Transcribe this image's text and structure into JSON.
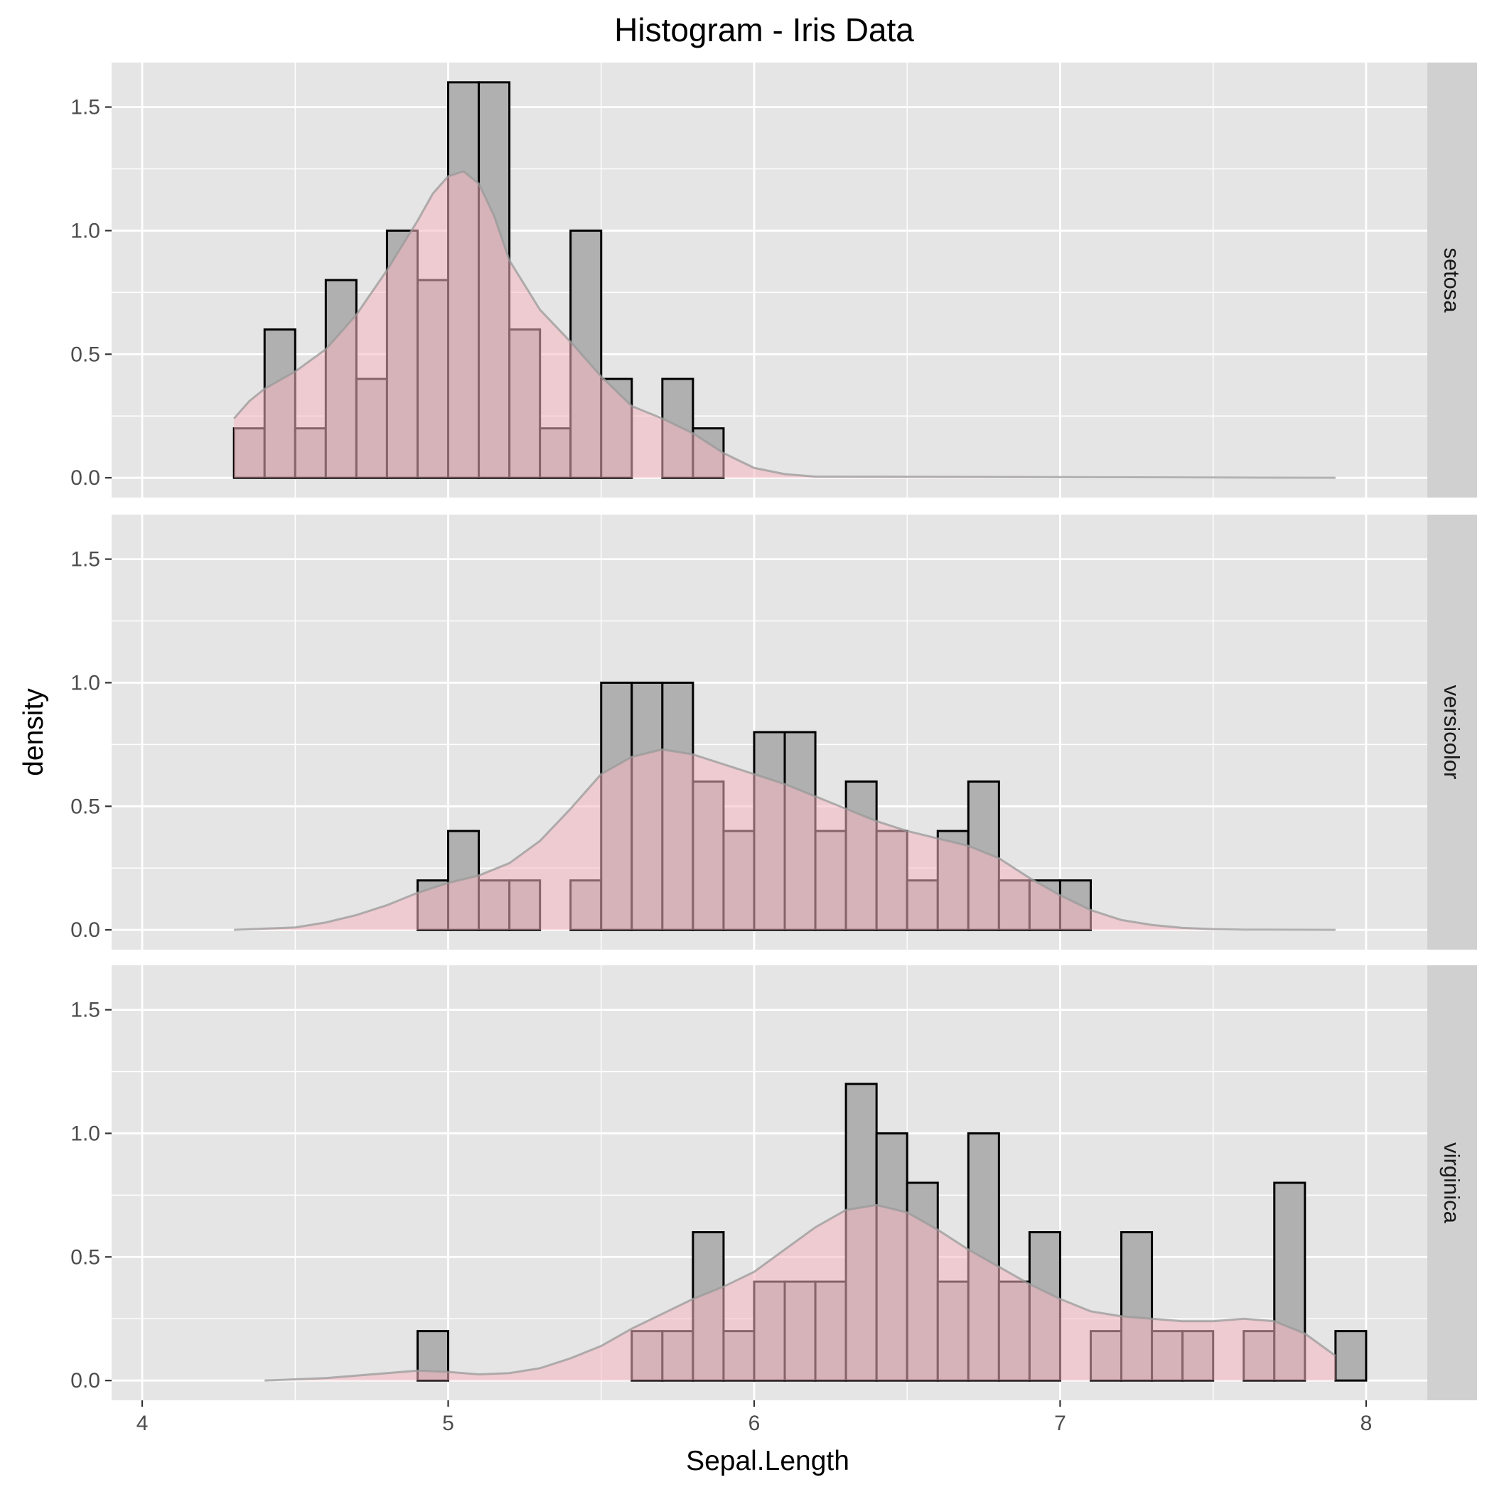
{
  "chart_data": {
    "type": "bar",
    "subtype": "faceted histogram with density overlay",
    "title": "Histogram - Iris Data",
    "xlabel": "Sepal.Length",
    "ylabel": "density",
    "xlim": [
      3.9,
      8.2
    ],
    "ylim": [
      -0.08,
      1.68
    ],
    "x_ticks": [
      4,
      5,
      6,
      7,
      8
    ],
    "y_ticks": [
      0.0,
      0.5,
      1.0,
      1.5
    ],
    "y_tick_labels": [
      "0.0",
      "0.5",
      "1.0",
      "1.5"
    ],
    "grid": true,
    "legend": "none",
    "bin_width": 0.1,
    "bin_start": 4.1,
    "colors": {
      "panel_background": "#e5e5e5",
      "grid": "#ffffff",
      "strip_background": "#d0d0d0",
      "bar_fill": "#b0b0b0",
      "bar_outline": "#000000",
      "density_fill": "#f4b6bf",
      "density_line": "#999999"
    },
    "facets": [
      {
        "name": "setosa",
        "bin_density": [
          0,
          0,
          0.2,
          0.6,
          0.2,
          0.8,
          0.4,
          1.0,
          0.8,
          1.6,
          1.6,
          0.6,
          0.2,
          1.0,
          0.4,
          0,
          0.4,
          0.2,
          0,
          0,
          0,
          0,
          0,
          0,
          0,
          0,
          0,
          0,
          0,
          0,
          0,
          0,
          0,
          0,
          0,
          0,
          0,
          0,
          0
        ],
        "density_curve": {
          "x": [
            4.3,
            4.35,
            4.4,
            4.5,
            4.6,
            4.7,
            4.8,
            4.9,
            4.95,
            5.0,
            5.05,
            5.1,
            5.15,
            5.2,
            5.3,
            5.4,
            5.5,
            5.6,
            5.7,
            5.8,
            5.9,
            6.0,
            6.1,
            6.2,
            7.9
          ],
          "y": [
            0.24,
            0.31,
            0.36,
            0.43,
            0.52,
            0.66,
            0.84,
            1.04,
            1.15,
            1.22,
            1.24,
            1.19,
            1.06,
            0.88,
            0.68,
            0.55,
            0.41,
            0.29,
            0.24,
            0.18,
            0.1,
            0.04,
            0.015,
            0.005,
            0
          ]
        }
      },
      {
        "name": "versicolor",
        "bin_density": [
          0,
          0,
          0,
          0,
          0,
          0,
          0,
          0,
          0.2,
          0.4,
          0.2,
          0.2,
          0,
          0.2,
          1.0,
          1.0,
          1.0,
          0.6,
          0.4,
          0.8,
          0.8,
          0.4,
          0.6,
          0.4,
          0.2,
          0.4,
          0.6,
          0.2,
          0.2,
          0.2,
          0,
          0,
          0,
          0,
          0,
          0,
          0,
          0,
          0
        ],
        "density_curve": {
          "x": [
            4.3,
            4.5,
            4.6,
            4.7,
            4.8,
            4.9,
            5.0,
            5.1,
            5.2,
            5.3,
            5.4,
            5.5,
            5.6,
            5.7,
            5.8,
            5.9,
            6.0,
            6.1,
            6.2,
            6.3,
            6.4,
            6.5,
            6.6,
            6.7,
            6.8,
            6.9,
            7.0,
            7.1,
            7.2,
            7.3,
            7.4,
            7.5,
            7.6,
            7.9
          ],
          "y": [
            0.0,
            0.01,
            0.03,
            0.06,
            0.1,
            0.15,
            0.19,
            0.22,
            0.27,
            0.36,
            0.49,
            0.63,
            0.7,
            0.73,
            0.71,
            0.67,
            0.63,
            0.59,
            0.54,
            0.49,
            0.44,
            0.4,
            0.37,
            0.34,
            0.29,
            0.21,
            0.14,
            0.08,
            0.04,
            0.02,
            0.008,
            0.003,
            0.001,
            0.0
          ]
        }
      },
      {
        "name": "virginica",
        "bin_density": [
          0,
          0,
          0,
          0,
          0,
          0,
          0,
          0,
          0.2,
          0,
          0,
          0,
          0,
          0,
          0,
          0.2,
          0.2,
          0.6,
          0.2,
          0.4,
          0.4,
          0.4,
          1.2,
          1.0,
          0.8,
          0.4,
          1.0,
          0.4,
          0.6,
          0,
          0.2,
          0.6,
          0.2,
          0.2,
          0,
          0.2,
          0.8,
          0,
          0.2
        ],
        "density_curve": {
          "x": [
            4.4,
            4.6,
            4.8,
            4.9,
            5.0,
            5.1,
            5.2,
            5.3,
            5.4,
            5.5,
            5.6,
            5.7,
            5.8,
            5.9,
            6.0,
            6.1,
            6.2,
            6.3,
            6.4,
            6.5,
            6.6,
            6.7,
            6.8,
            6.9,
            7.0,
            7.1,
            7.2,
            7.3,
            7.4,
            7.5,
            7.6,
            7.7,
            7.8,
            7.9
          ],
          "y": [
            0.0,
            0.01,
            0.03,
            0.04,
            0.035,
            0.025,
            0.03,
            0.05,
            0.09,
            0.14,
            0.21,
            0.27,
            0.33,
            0.38,
            0.44,
            0.53,
            0.62,
            0.69,
            0.71,
            0.68,
            0.61,
            0.53,
            0.46,
            0.39,
            0.33,
            0.28,
            0.26,
            0.25,
            0.24,
            0.24,
            0.25,
            0.24,
            0.19,
            0.1
          ]
        }
      }
    ]
  }
}
